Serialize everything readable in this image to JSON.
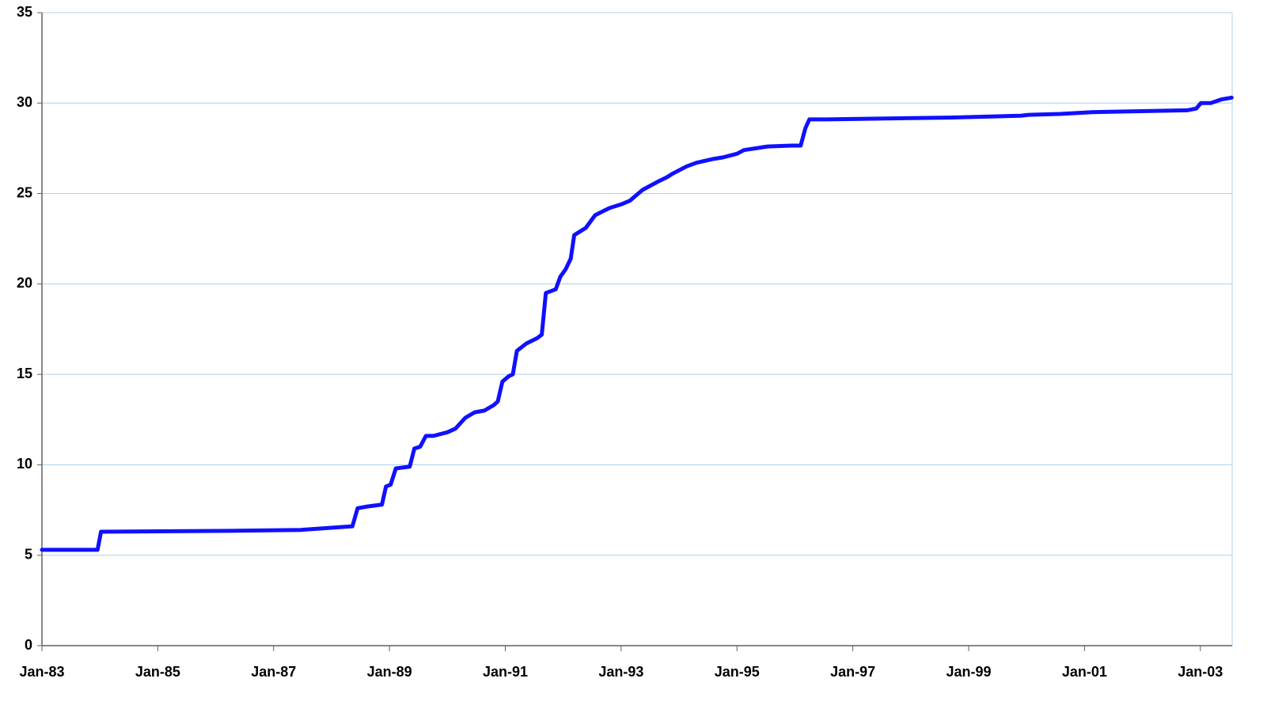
{
  "chart_data": {
    "type": "line",
    "x": [
      1983.0,
      1983.96,
      1984.02,
      1986.24,
      1987.47,
      1988.36,
      1988.45,
      1988.63,
      1988.87,
      1988.94,
      1989.02,
      1989.11,
      1989.35,
      1989.43,
      1989.53,
      1989.63,
      1989.76,
      1990.0,
      1990.14,
      1990.31,
      1990.47,
      1990.64,
      1990.8,
      1990.87,
      1990.95,
      1991.06,
      1991.13,
      1991.2,
      1991.36,
      1991.55,
      1991.63,
      1991.7,
      1991.87,
      1991.95,
      1992.04,
      1992.13,
      1992.19,
      1992.39,
      1992.55,
      1992.8,
      1993.0,
      1993.15,
      1993.37,
      1993.66,
      1993.79,
      1993.89,
      1994.13,
      1994.3,
      1994.57,
      1994.76,
      1995.0,
      1995.12,
      1995.53,
      1995.94,
      1996.1,
      1996.18,
      1996.25,
      1996.55,
      1998.67,
      1999.9,
      2000.04,
      2000.58,
      2001.13,
      2002.77,
      2002.93,
      2003.01,
      2003.18,
      2003.36,
      2003.54
    ],
    "series": [
      {
        "color": "#1010ff",
        "values": [
          5.3,
          5.3,
          6.3,
          6.35,
          6.4,
          6.6,
          7.6,
          7.7,
          7.8,
          8.8,
          8.9,
          9.8,
          9.9,
          10.9,
          11.0,
          11.6,
          11.6,
          11.8,
          12.0,
          12.6,
          12.9,
          13.0,
          13.3,
          13.5,
          14.6,
          14.9,
          15.0,
          16.3,
          16.7,
          17.0,
          17.2,
          19.5,
          19.7,
          20.4,
          20.8,
          21.4,
          22.7,
          23.1,
          23.8,
          24.2,
          24.4,
          24.6,
          25.2,
          25.7,
          25.9,
          26.1,
          26.5,
          26.7,
          26.9,
          27.0,
          27.2,
          27.4,
          27.6,
          27.65,
          27.65,
          28.6,
          29.1,
          29.1,
          29.2,
          29.3,
          29.35,
          29.4,
          29.5,
          29.6,
          29.7,
          30.0,
          30.0,
          30.2,
          30.3
        ]
      }
    ],
    "xlim": [
      1983.0,
      2003.55
    ],
    "xticks": [
      {
        "value": 1983,
        "label": "Jan-83"
      },
      {
        "value": 1985,
        "label": "Jan-85"
      },
      {
        "value": 1987,
        "label": "Jan-87"
      },
      {
        "value": 1989,
        "label": "Jan-89"
      },
      {
        "value": 1991,
        "label": "Jan-91"
      },
      {
        "value": 1993,
        "label": "Jan-93"
      },
      {
        "value": 1995,
        "label": "Jan-95"
      },
      {
        "value": 1997,
        "label": "Jan-97"
      },
      {
        "value": 1999,
        "label": "Jan-99"
      },
      {
        "value": 2001,
        "label": "Jan-01"
      },
      {
        "value": 2003,
        "label": "Jan-03"
      }
    ],
    "ylim": [
      0,
      35
    ],
    "yticks": [
      0,
      5,
      10,
      15,
      20,
      25,
      30,
      35
    ],
    "grid": true
  }
}
